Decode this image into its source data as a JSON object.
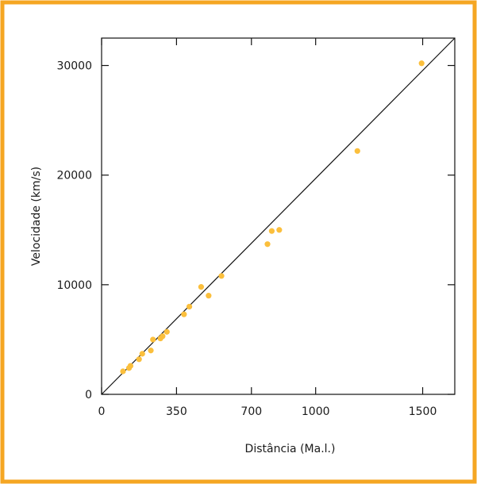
{
  "colors": {
    "frame_border": "#f5a623",
    "point": "#fbbf3c",
    "axis": "#111111"
  },
  "chart_data": {
    "type": "scatter",
    "title": "",
    "xlabel": "Distância (Ma.l.)",
    "ylabel": "Velocidade (km/s)",
    "xlim": [
      0,
      1650
    ],
    "ylim": [
      0,
      32500
    ],
    "x_ticks": [
      0,
      350,
      700,
      1000,
      1500
    ],
    "x_tick_labels": [
      "0",
      "350",
      "700",
      "1000",
      "1500"
    ],
    "y_ticks": [
      0,
      10000,
      20000,
      30000
    ],
    "y_tick_labels": [
      "0",
      "10000",
      "20000",
      "30000"
    ],
    "grid": false,
    "legend": "none",
    "trend_line": {
      "from": [
        0,
        0
      ],
      "to": [
        1650,
        32500
      ]
    },
    "series": [
      {
        "x": [
          100,
          128,
          135,
          175,
          190,
          230,
          240,
          275,
          285,
          305,
          385,
          410,
          465,
          500,
          560,
          775,
          795,
          830,
          1195,
          1495
        ],
        "y": [
          2100,
          2400,
          2600,
          3200,
          3700,
          4000,
          5000,
          5100,
          5300,
          5700,
          7300,
          8000,
          9800,
          9000,
          10800,
          13700,
          14900,
          15000,
          22200,
          30200
        ]
      }
    ]
  }
}
